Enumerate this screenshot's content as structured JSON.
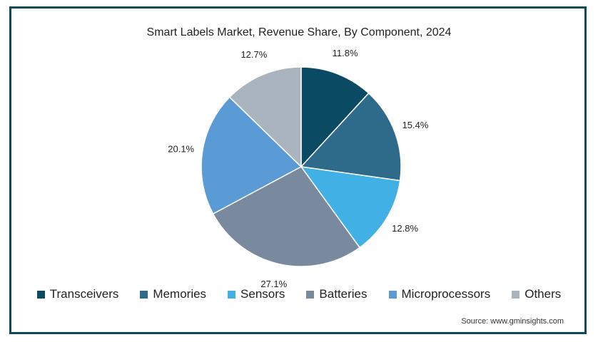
{
  "chart_data": {
    "type": "pie",
    "title": "Smart Labels Market, Revenue Share, By Component, 2024",
    "slices": [
      {
        "label": "Transceivers",
        "value": 11.8,
        "value_label": "11.8%",
        "color": "#0b4a63"
      },
      {
        "label": "Memories",
        "value": 15.4,
        "value_label": "15.4%",
        "color": "#2e6a8a"
      },
      {
        "label": "Sensors",
        "value": 12.8,
        "value_label": "12.8%",
        "color": "#41b0e4"
      },
      {
        "label": "Batteries",
        "value": 27.1,
        "value_label": "27.1%",
        "color": "#7a8a9e"
      },
      {
        "label": "Microprocessors",
        "value": 20.1,
        "value_label": "20.1%",
        "color": "#5b9bd5"
      },
      {
        "label": "Others",
        "value": 12.7,
        "value_label": "12.7%",
        "color": "#a9b4bf"
      }
    ],
    "start_angle": "12 o'clock",
    "direction": "clockwise",
    "legend_position": "bottom"
  },
  "source": "Source: www.gminsights.com",
  "frame_color": "#0f4a5c"
}
